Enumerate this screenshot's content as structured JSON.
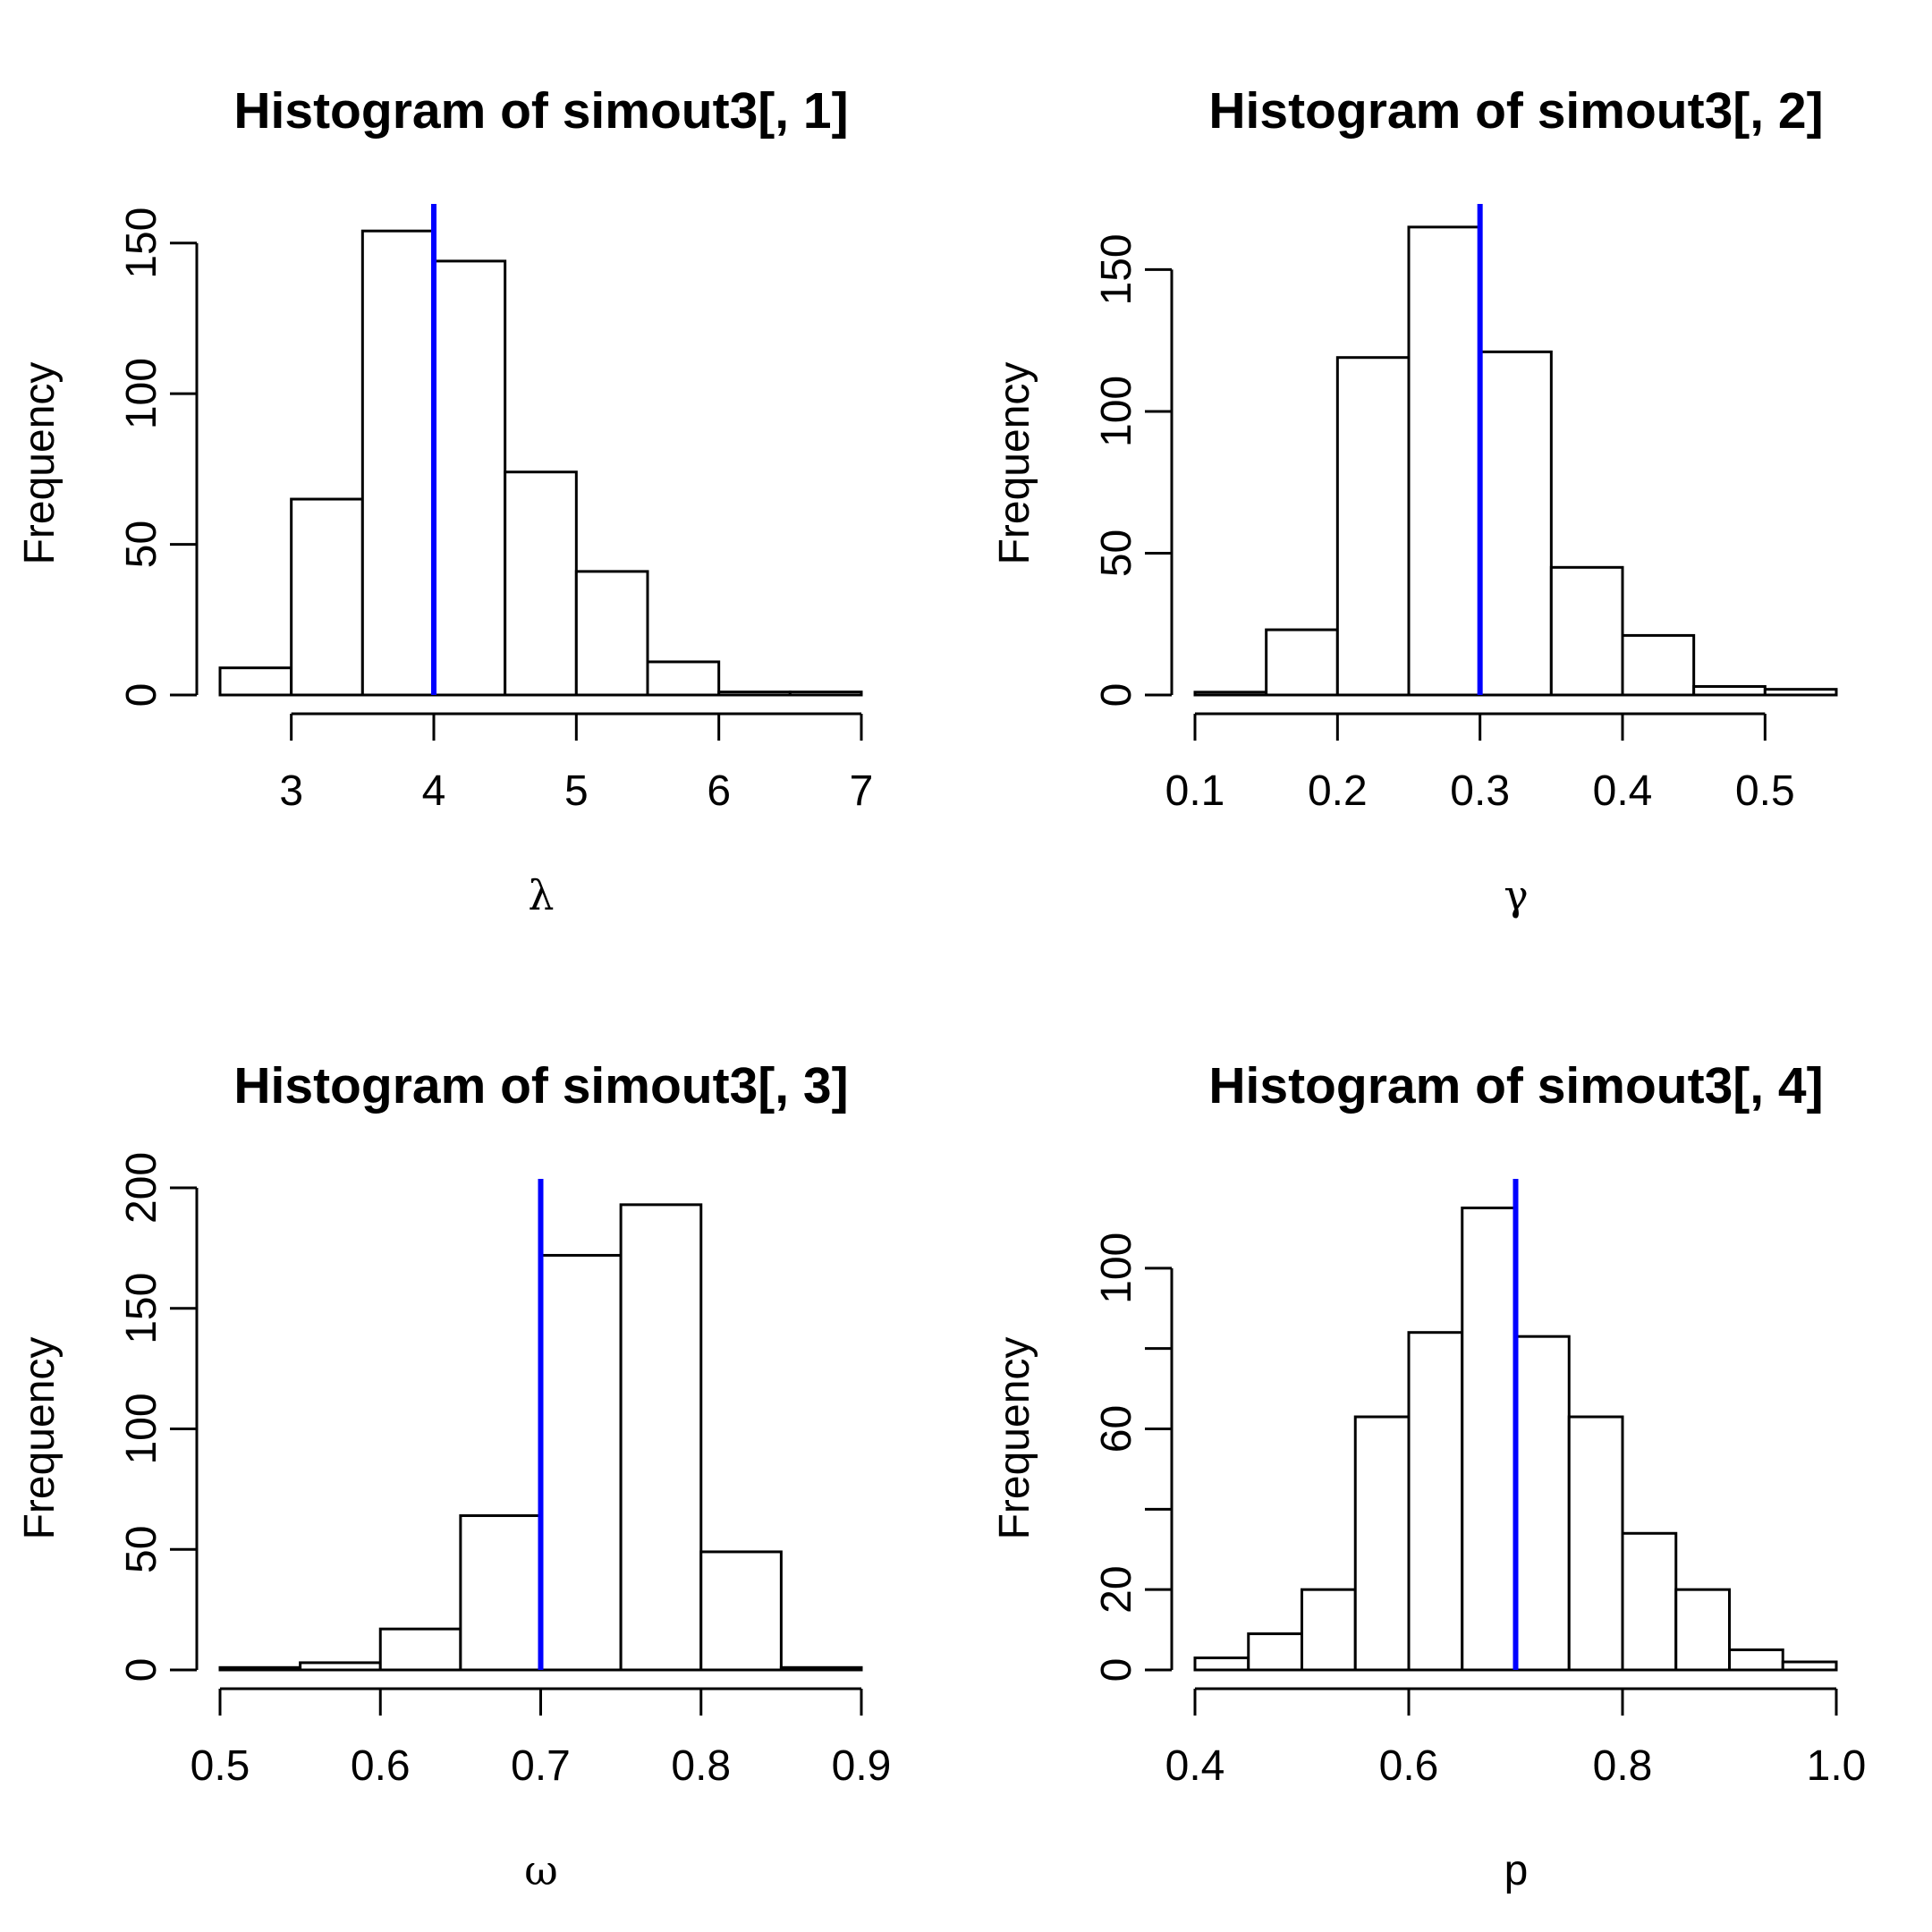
{
  "figure": {
    "background": "#ffffff",
    "bar_fill": "#ffffff",
    "bar_stroke": "#000000",
    "marker_color": "#0000ff"
  },
  "chart_data": [
    {
      "type": "bar",
      "title": "Histogram of simout3[, 1]",
      "xlabel": "λ",
      "ylabel": "Frequency",
      "bin_edges": [
        2.5,
        3,
        3.5,
        4,
        4.5,
        5,
        5.5,
        6,
        6.5,
        7
      ],
      "values": [
        9,
        65,
        154,
        144,
        74,
        41,
        11,
        1,
        1
      ],
      "xlim": [
        2.5,
        7
      ],
      "ylim": [
        0,
        160
      ],
      "x_ticks": [
        3,
        4,
        5,
        6,
        7
      ],
      "x_tick_labels": [
        "3",
        "4",
        "5",
        "6",
        "7"
      ],
      "y_ticks": [
        0,
        50,
        100,
        150
      ],
      "y_tick_labels": [
        "0",
        "50",
        "100",
        "150"
      ],
      "reference_line": 4,
      "grid": false
    },
    {
      "type": "bar",
      "title": "Histogram of simout3[, 2]",
      "xlabel": "γ",
      "ylabel": "Frequency",
      "bin_edges": [
        0.1,
        0.15,
        0.2,
        0.25,
        0.3,
        0.35,
        0.4,
        0.45,
        0.5,
        0.55
      ],
      "values": [
        1,
        23,
        119,
        165,
        121,
        45,
        21,
        3,
        2
      ],
      "xlim": [
        0.1,
        0.55
      ],
      "ylim": [
        0,
        170
      ],
      "x_ticks": [
        0.1,
        0.2,
        0.3,
        0.4,
        0.5
      ],
      "x_tick_labels": [
        "0.1",
        "0.2",
        "0.3",
        "0.4",
        "0.5"
      ],
      "y_ticks": [
        0,
        50,
        100,
        150
      ],
      "y_tick_labels": [
        "0",
        "50",
        "100",
        "150"
      ],
      "reference_line": 0.3,
      "grid": false
    },
    {
      "type": "bar",
      "title": "Histogram of simout3[, 3]",
      "xlabel": "ω",
      "ylabel": "Frequency",
      "bin_edges": [
        0.5,
        0.55,
        0.6,
        0.65,
        0.7,
        0.75,
        0.8,
        0.85,
        0.9
      ],
      "values": [
        1,
        3,
        17,
        64,
        172,
        193,
        49,
        1
      ],
      "xlim": [
        0.5,
        0.9
      ],
      "ylim": [
        0,
        200
      ],
      "x_ticks": [
        0.5,
        0.6,
        0.7,
        0.8,
        0.9
      ],
      "x_tick_labels": [
        "0.5",
        "0.6",
        "0.7",
        "0.8",
        "0.9"
      ],
      "y_ticks": [
        0,
        50,
        100,
        150,
        200
      ],
      "y_tick_labels": [
        "0",
        "50",
        "100",
        "150",
        "200"
      ],
      "reference_line": 0.7,
      "grid": false
    },
    {
      "type": "bar",
      "title": "Histogram of simout3[, 4]",
      "xlabel": "p",
      "ylabel": "Frequency",
      "bin_edges": [
        0.4,
        0.45,
        0.5,
        0.55,
        0.6,
        0.65,
        0.7,
        0.75,
        0.8,
        0.85,
        0.9,
        0.95,
        1.0
      ],
      "values": [
        3,
        9,
        20,
        63,
        84,
        115,
        83,
        63,
        34,
        20,
        5,
        2
      ],
      "xlim": [
        0.4,
        1.0
      ],
      "ylim": [
        0,
        120
      ],
      "x_ticks": [
        0.4,
        0.6,
        0.8,
        1.0
      ],
      "x_tick_labels": [
        "0.4",
        "0.6",
        "0.8",
        "1.0"
      ],
      "y_ticks": [
        0,
        20,
        40,
        60,
        80,
        100
      ],
      "y_tick_labels": [
        "0",
        "20",
        "",
        "60",
        "",
        "100"
      ],
      "reference_line": 0.7,
      "grid": false
    }
  ]
}
